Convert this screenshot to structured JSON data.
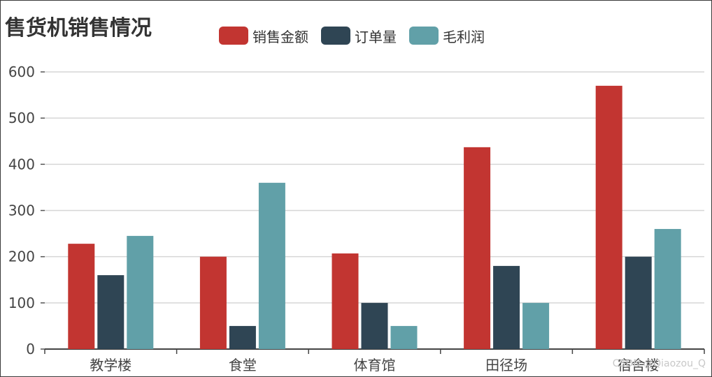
{
  "chart_data": {
    "type": "bar",
    "title": "售货机销售情况",
    "categories": [
      "教学楼",
      "食堂",
      "体育馆",
      "田径场",
      "宿舍楼"
    ],
    "series": [
      {
        "name": "销售金额",
        "color": "#c23531",
        "values": [
          228,
          200,
          207,
          437,
          570
        ]
      },
      {
        "name": "订单量",
        "color": "#2f4554",
        "values": [
          160,
          50,
          100,
          180,
          200
        ]
      },
      {
        "name": "毛利润",
        "color": "#61a0a8",
        "values": [
          245,
          360,
          50,
          100,
          260
        ]
      }
    ],
    "ylim": [
      0,
      600
    ],
    "yticks": [
      0,
      100,
      200,
      300,
      400,
      500,
      600
    ],
    "xlabel": "",
    "ylabel": "",
    "grid": true,
    "legend": "top-center"
  },
  "watermark": "CSDN @Qiaozou_Q"
}
